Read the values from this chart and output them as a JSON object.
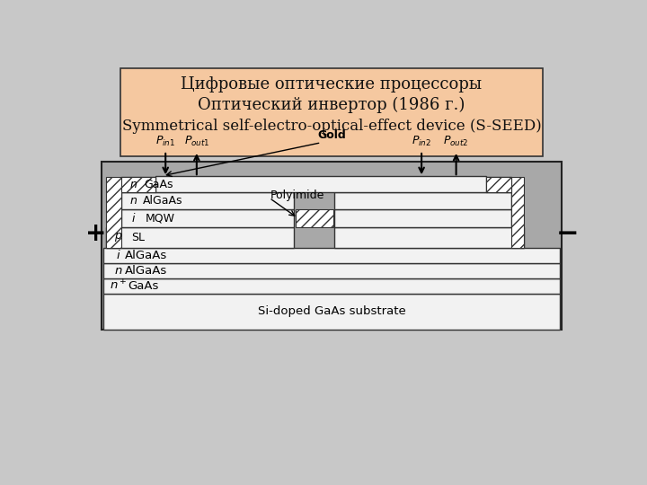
{
  "title_line1": "Цифровые оптические процессоры",
  "title_line2": "Оптический инвертор (1986 г.)",
  "title_line3": "Symmetrical self-electro-optical-effect device (S-SEED)",
  "title_bg_color": "#F5C8A0",
  "outer_bg": "#C8C8C8",
  "diag_bg": "#A8A8A8",
  "layer_white": "#F2F2F2",
  "layer_light": "#E0E0E0",
  "hatch_pattern": "///",
  "font_size_title": 13,
  "font_size_label": 9,
  "font_size_pm": 18
}
